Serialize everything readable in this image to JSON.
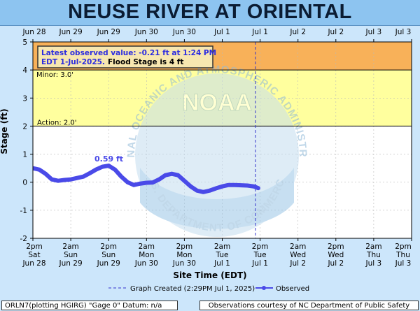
{
  "title": "NEUSE RIVER AT ORIENTAL",
  "chart_data": {
    "type": "line",
    "xlabel": "Site Time (EDT)",
    "ylabel": "Stage (ft)",
    "ylim": [
      -2,
      5
    ],
    "yticks": [
      -2,
      -1,
      0,
      1,
      2,
      3,
      4,
      5
    ],
    "top_ticks": [
      "Jun 28",
      "Jun 29",
      "Jun 29",
      "Jun 30",
      "Jun 30",
      "Jul 1",
      "Jul 1",
      "Jul 2",
      "Jul 2",
      "Jul 3",
      "Jul 3"
    ],
    "bottom_ticks": [
      [
        "2pm",
        "Sat",
        "Jun 28"
      ],
      [
        "2am",
        "Sun",
        "Jun 29"
      ],
      [
        "2pm",
        "Sun",
        "Jun 29"
      ],
      [
        "2am",
        "Mon",
        "Jun 30"
      ],
      [
        "2pm",
        "Mon",
        "Jun 30"
      ],
      [
        "2am",
        "Tue",
        "Jul 1"
      ],
      [
        "2pm",
        "Tue",
        "Jul 1"
      ],
      [
        "2am",
        "Wed",
        "Jul 2"
      ],
      [
        "2pm",
        "Wed",
        "Jul 2"
      ],
      [
        "2am",
        "Thu",
        "Jul 3"
      ],
      [
        "2pm",
        "Thu",
        "Jul 3"
      ]
    ],
    "bands": [
      {
        "from": 4,
        "to": 5,
        "color": "#f8b159",
        "label": ""
      },
      {
        "from": 2,
        "to": 4,
        "color": "#ffff9e",
        "label": "Minor: 3.0'"
      },
      {
        "from": -2,
        "to": 2,
        "color": "#ffffff",
        "label": ""
      }
    ],
    "thresholds": [
      {
        "value": 4,
        "label": ""
      },
      {
        "value": 2,
        "label": "Action: 2.0'"
      }
    ],
    "series": [
      {
        "name": "Observed",
        "color": "#4a4ae8",
        "x_hours": [
          0,
          2,
          4,
          6,
          8,
          10,
          12,
          14,
          16,
          18,
          20,
          22,
          24,
          26,
          28,
          30,
          32,
          34,
          36,
          38,
          40,
          42,
          44,
          46,
          48,
          50,
          52,
          54,
          56,
          58,
          60,
          62,
          64,
          66,
          68,
          70,
          71.4
        ],
        "y": [
          0.5,
          0.45,
          0.3,
          0.1,
          0.05,
          0.08,
          0.1,
          0.15,
          0.2,
          0.32,
          0.45,
          0.55,
          0.59,
          0.45,
          0.2,
          0.0,
          -0.1,
          -0.05,
          -0.02,
          -0.01,
          0.1,
          0.25,
          0.3,
          0.25,
          0.05,
          -0.15,
          -0.3,
          -0.35,
          -0.3,
          -0.22,
          -0.15,
          -0.1,
          -0.1,
          -0.11,
          -0.12,
          -0.15,
          -0.21
        ]
      }
    ],
    "peak_label": "0.59 ft",
    "info_box": {
      "line1": "Latest observed value: -0.21 ft at 1:24 PM",
      "line2": "EDT 1-Jul-2025.",
      "line2b": "Flood Stage is 4 ft"
    },
    "legend": {
      "created": "Graph Created (2:29PM Jul 1, 2025)",
      "observed": "Observed"
    },
    "grid": true
  },
  "footer": {
    "left": "ORLN7(plotting HGIRG) \"Gage 0\" Datum: n/a",
    "right": "Observations courtesy of NC Department of Public Safety"
  },
  "watermark": {
    "text_top": "NATIONAL OCEANIC AND ATMOSPHERIC ADMINISTRATION",
    "text_bottom": "U.S. DEPARTMENT OF COMMERCE",
    "center": "NOAA"
  }
}
